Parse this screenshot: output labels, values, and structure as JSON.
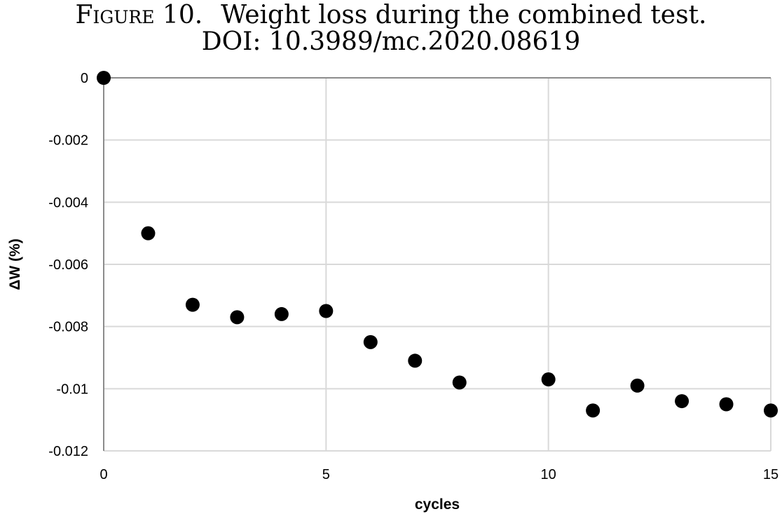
{
  "caption": {
    "label": "Figure 10.",
    "text": "Weight loss during the combined test.",
    "doi": "DOI: 10.3989/mc.2020.08619"
  },
  "chart_data": {
    "type": "scatter",
    "xlabel": "cycles",
    "ylabel": "ΔW (%)",
    "xlim": [
      0,
      15
    ],
    "ylim": [
      -0.012,
      0
    ],
    "xticks": [
      0,
      5,
      10,
      15
    ],
    "xtick_labels": [
      "0",
      "5",
      "10",
      "15"
    ],
    "yticks": [
      0,
      -0.002,
      -0.004,
      -0.006,
      -0.008,
      -0.01,
      -0.012
    ],
    "ytick_labels": [
      "0",
      "-0.002",
      "-0.004",
      "-0.006",
      "-0.008",
      "-0.01",
      "-0.012"
    ],
    "grid": true,
    "marker_color": "#000000",
    "grid_color": "#d9d9d9",
    "series": [
      {
        "x": [
          0,
          1,
          2,
          3,
          4,
          5,
          6,
          7,
          8,
          10,
          11,
          12,
          13,
          14,
          15
        ],
        "y": [
          0,
          -0.005,
          -0.0073,
          -0.0077,
          -0.0076,
          -0.0075,
          -0.0085,
          -0.0091,
          -0.0098,
          -0.0097,
          -0.0107,
          -0.0099,
          -0.0104,
          -0.0105,
          -0.0107
        ]
      }
    ]
  }
}
